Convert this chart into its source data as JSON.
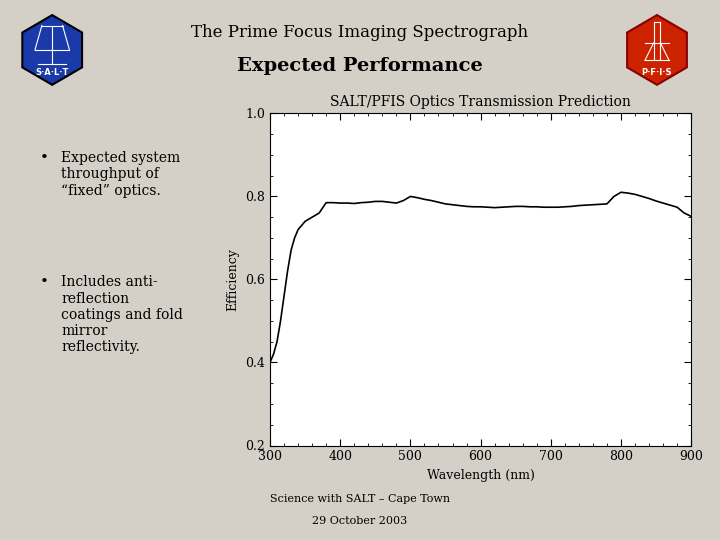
{
  "title_line1": "The Prime Focus Imaging Spectrograph",
  "title_line2": "Expected Performance",
  "plot_title": "SALT/PFIS Optics Transmission Prediction",
  "xlabel": "Wavelength (nm)",
  "ylabel": "Efficiency",
  "xlim": [
    300,
    900
  ],
  "ylim": [
    0.2,
    1.0
  ],
  "xticks": [
    300,
    400,
    500,
    600,
    700,
    800,
    900
  ],
  "yticks": [
    0.2,
    0.4,
    0.6,
    0.8,
    1.0
  ],
  "bullet1_dot": "•",
  "bullet1_text": "Expected system\nthroughput of\n“fixed” optics.",
  "bullet2_dot": "•",
  "bullet2_text": "Includes anti-\nreflection\ncoatings and fold\nmirror\nreflectivity.",
  "footer1": "Science with SALT – Cape Town",
  "footer2": "29 October 2003",
  "bg_color": "#d4d0c8",
  "plot_bg": "#ffffff",
  "line_color": "#000000",
  "salt_hex_color": "#1a3aaa",
  "pfis_hex_color": "#cc2200",
  "wavelengths": [
    300,
    305,
    310,
    315,
    320,
    325,
    330,
    335,
    340,
    345,
    350,
    360,
    370,
    380,
    390,
    400,
    410,
    420,
    430,
    440,
    450,
    460,
    470,
    480,
    490,
    500,
    510,
    520,
    530,
    540,
    550,
    560,
    570,
    580,
    590,
    600,
    610,
    620,
    630,
    640,
    650,
    660,
    670,
    680,
    690,
    700,
    710,
    720,
    730,
    740,
    750,
    760,
    770,
    780,
    790,
    800,
    810,
    820,
    830,
    840,
    850,
    860,
    870,
    880,
    890,
    900
  ],
  "efficiency": [
    0.4,
    0.42,
    0.45,
    0.5,
    0.56,
    0.62,
    0.67,
    0.7,
    0.72,
    0.73,
    0.74,
    0.75,
    0.76,
    0.785,
    0.785,
    0.784,
    0.784,
    0.783,
    0.785,
    0.786,
    0.788,
    0.788,
    0.786,
    0.784,
    0.79,
    0.8,
    0.797,
    0.793,
    0.79,
    0.786,
    0.782,
    0.78,
    0.778,
    0.776,
    0.775,
    0.775,
    0.774,
    0.773,
    0.774,
    0.775,
    0.776,
    0.776,
    0.775,
    0.775,
    0.774,
    0.774,
    0.774,
    0.775,
    0.776,
    0.778,
    0.779,
    0.78,
    0.781,
    0.782,
    0.8,
    0.81,
    0.808,
    0.805,
    0.8,
    0.795,
    0.789,
    0.784,
    0.779,
    0.774,
    0.76,
    0.752
  ]
}
